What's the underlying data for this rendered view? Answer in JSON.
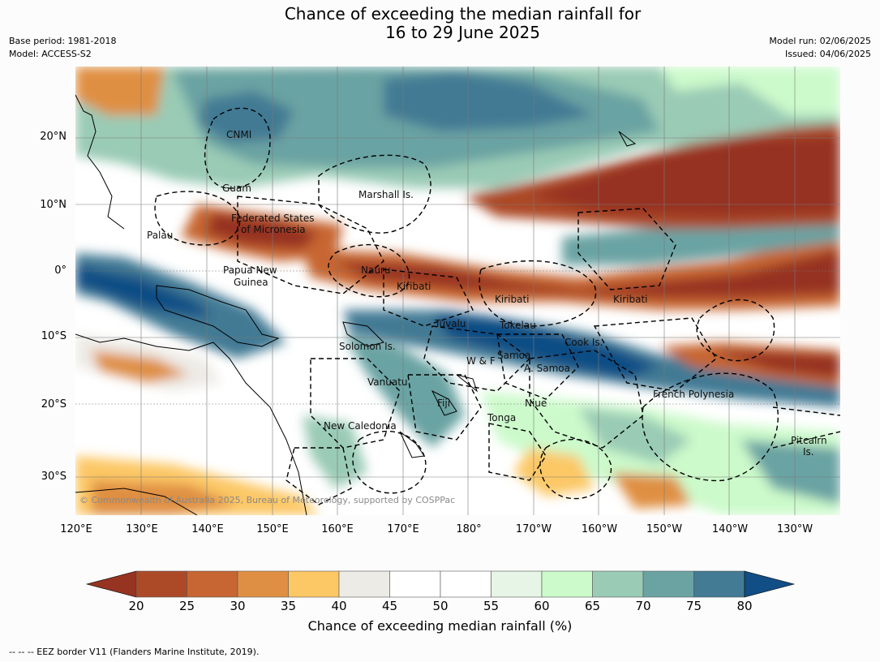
{
  "title_line1": "Chance of exceeding the median rainfall for",
  "title_line2": "16 to 29 June 2025",
  "meta": {
    "base_period": "Base period: 1981-2018",
    "model": "Model: ACCESS-S2",
    "model_run": "Model run: 02/06/2025",
    "issued": "Issued: 04/06/2025"
  },
  "lat_labels": [
    "20°N",
    "10°N",
    "0°",
    "10°S",
    "20°S",
    "30°S"
  ],
  "lon_labels": [
    "120°E",
    "130°E",
    "140°E",
    "150°E",
    "160°E",
    "170°E",
    "180°",
    "170°W",
    "160°W",
    "150°W",
    "140°W",
    "130°W"
  ],
  "regions": {
    "cnmi": "CNMI",
    "guam": "Guam",
    "marshall": "Marshall Is.",
    "fsm_1": "Federated States",
    "fsm_2": "of Micronesia",
    "palau": "Palau",
    "png_1": "Papua New",
    "png_2": "Guinea",
    "nauru": "Nauru",
    "kiribati_w": "Kiribati",
    "kiribati_c": "Kiribati",
    "kiribati_e": "Kiribati",
    "tuvalu": "Tuvalu",
    "tokelau": "Tokelau",
    "solomon": "Solomon Is.",
    "samoa": "Samoa",
    "wf": "W & F",
    "asamoa": "A. Samoa",
    "cook": "Cook Is.",
    "vanuatu": "Vanuatu",
    "fiji": "Fiji",
    "niue": "Niue",
    "tonga": "Tonga",
    "french_polynesia": "French Polynesia",
    "new_caledonia": "New Caledonia",
    "pitcairn_1": "Pitcairn",
    "pitcairn_2": "Is."
  },
  "copyright": "© Commonwealth of Australia 2025, Bureau of Meteorology, supported by COSPPac",
  "colorbar": {
    "ticks": [
      "20",
      "25",
      "30",
      "35",
      "40",
      "45",
      "50",
      "55",
      "60",
      "65",
      "70",
      "75",
      "80"
    ],
    "low_arrow_color": "#963321",
    "high_arrow_color": "#114e85",
    "colors": [
      "#ac4a28",
      "#c76632",
      "#df8f43",
      "#fcc866",
      "#edebe6",
      "#ffffff",
      "#ffffff",
      "#e6f5e6",
      "#ccfacb",
      "#9acbb5",
      "#6ba3a3",
      "#437a94"
    ],
    "label": "Chance of exceeding median rainfall (%)"
  },
  "footnote": "--  --  -- EEZ border V11 (Flanders Marine Institute, 2019)."
}
